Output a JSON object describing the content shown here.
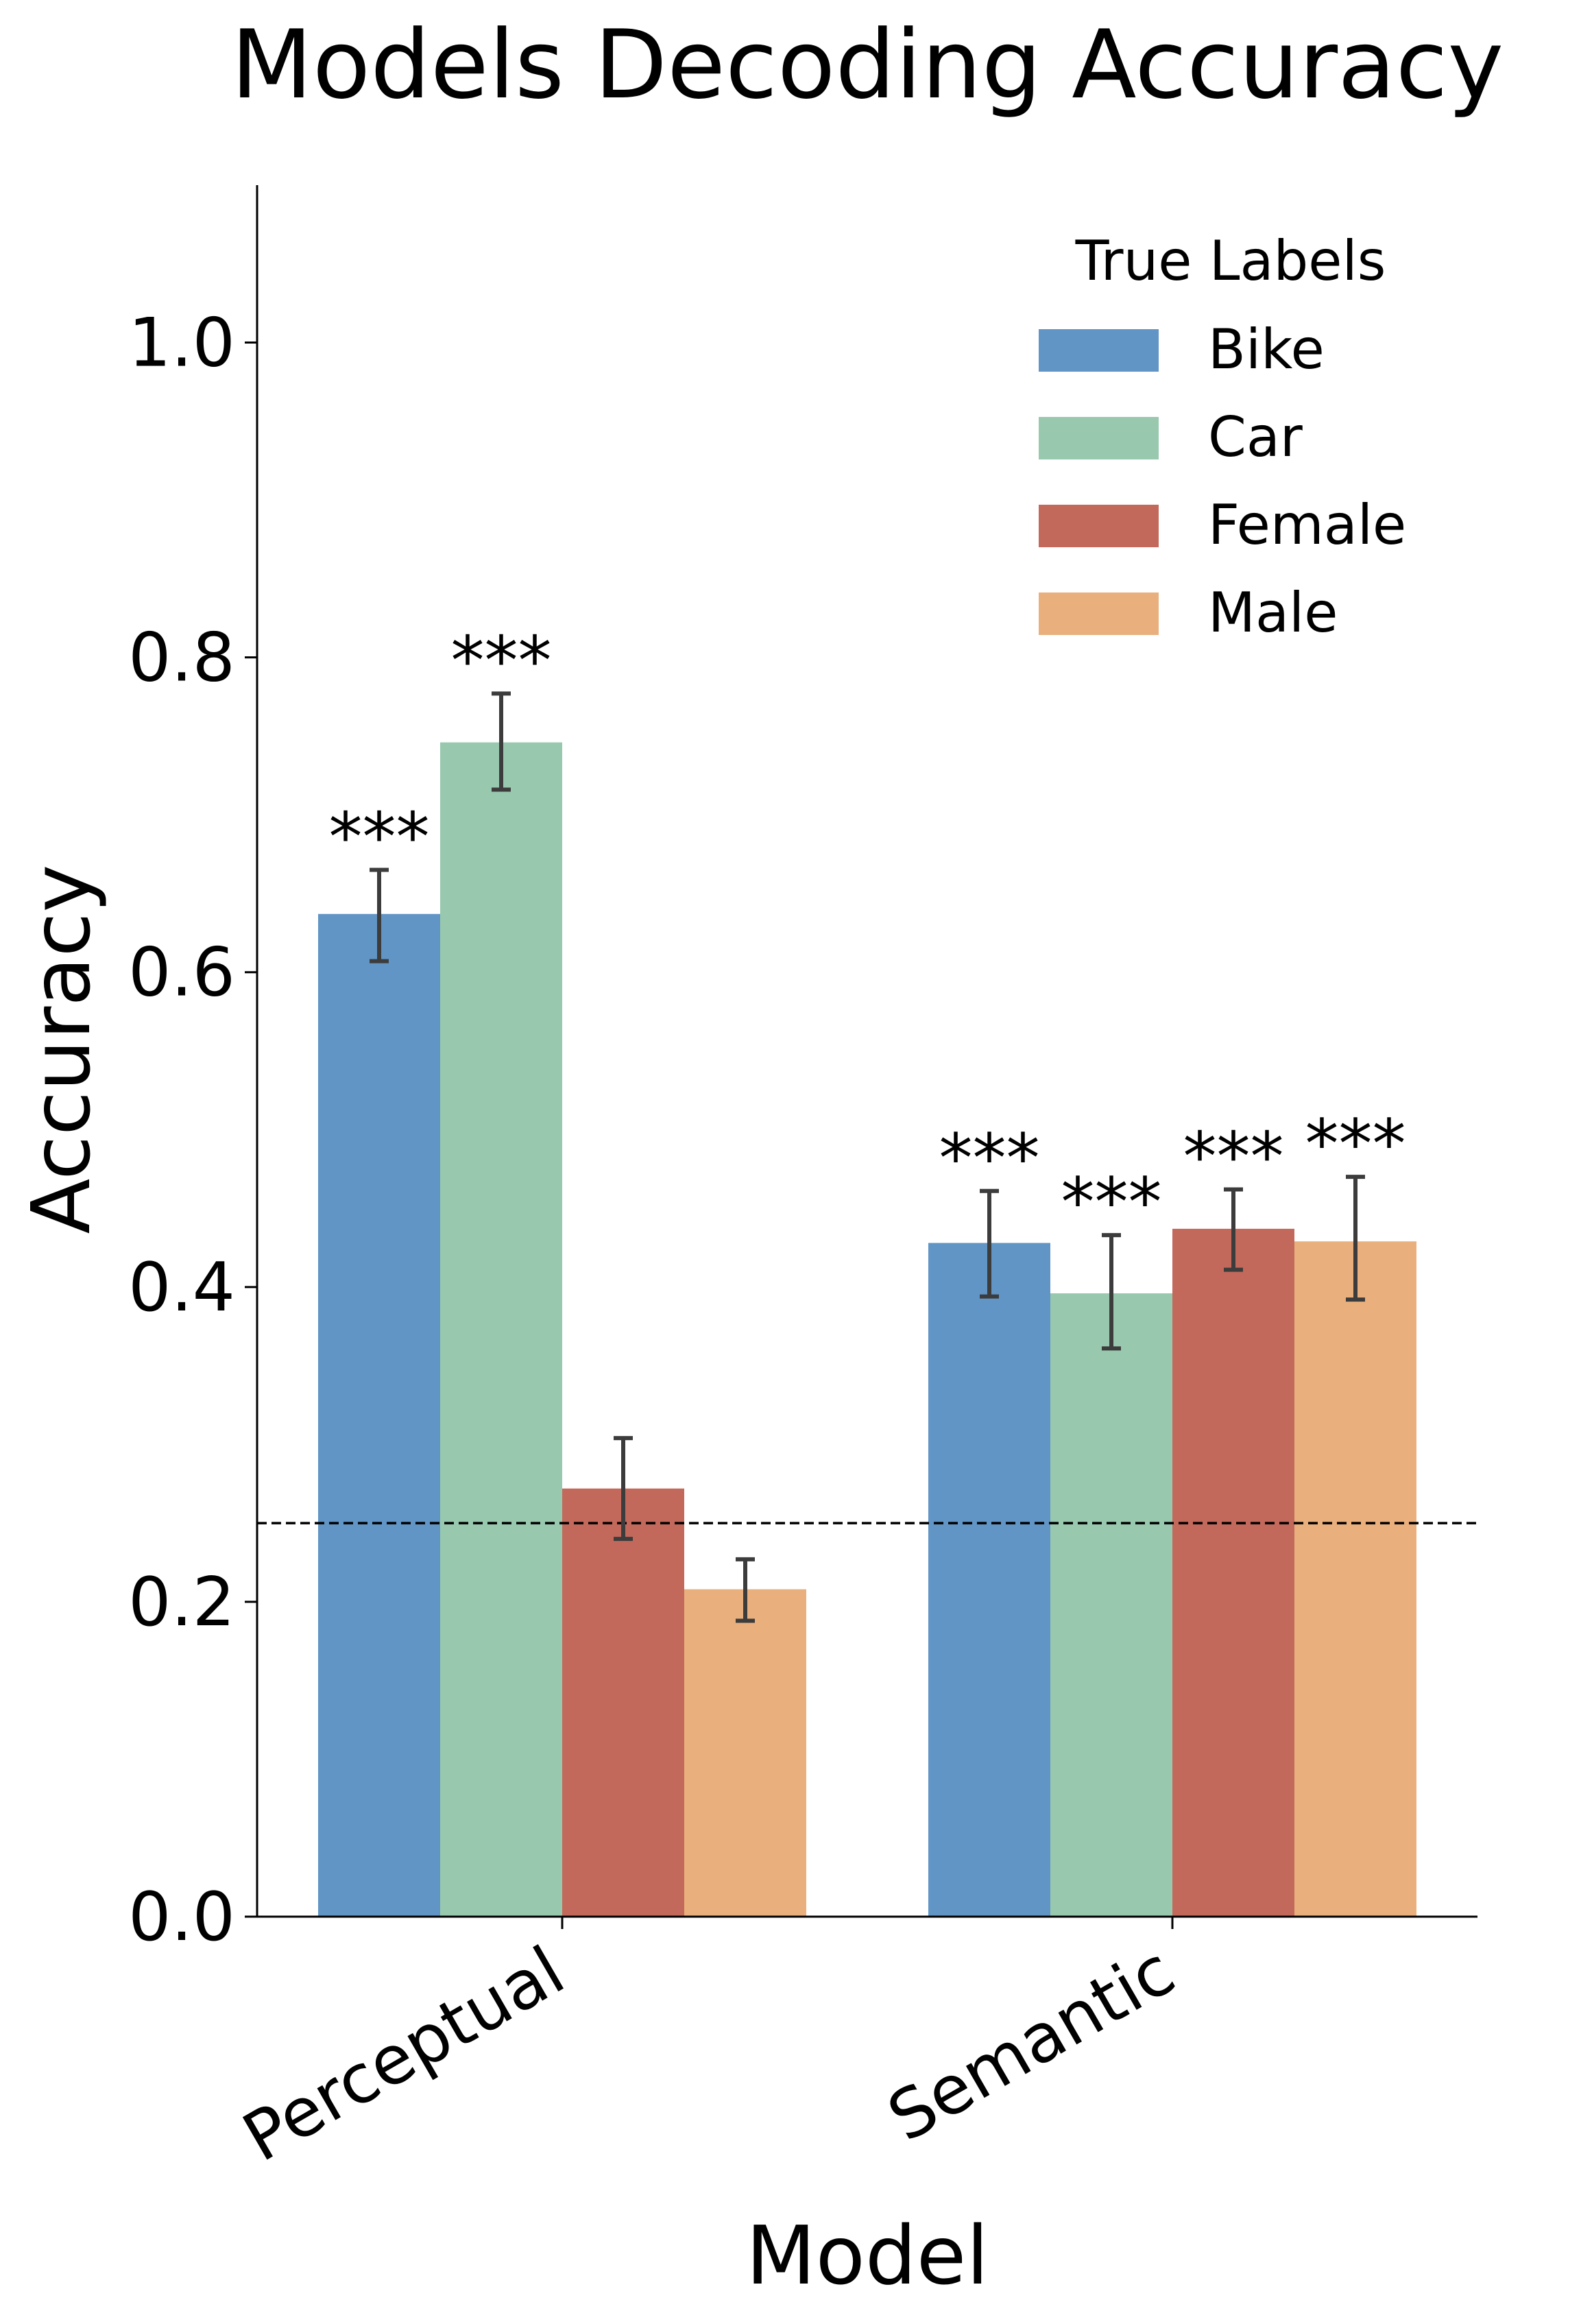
{
  "chart_data": {
    "type": "bar",
    "title": "Models Decoding Accuracy",
    "xlabel": "Model",
    "ylabel": "Accuracy",
    "categories": [
      "Perceptual",
      "Semantic"
    ],
    "ylim": [
      0,
      1.1
    ],
    "yticks": [
      0.0,
      0.2,
      0.4,
      0.6,
      0.8,
      1.0
    ],
    "ytick_labels": [
      "0.0",
      "0.2",
      "0.4",
      "0.6",
      "0.8",
      "1.0"
    ],
    "chance_level": 0.25,
    "grid": false,
    "legend": {
      "title": "True Labels",
      "position": "top-right"
    },
    "series": [
      {
        "name": "Bike",
        "color": "#6195c5",
        "values": [
          0.637,
          0.428
        ],
        "err_low": [
          0.607,
          0.394
        ],
        "err_high": [
          0.665,
          0.461
        ],
        "significance": [
          "***",
          "***"
        ]
      },
      {
        "name": "Car",
        "color": "#98c9ae",
        "values": [
          0.746,
          0.396
        ],
        "err_low": [
          0.716,
          0.361
        ],
        "err_high": [
          0.777,
          0.433
        ],
        "significance": [
          "***",
          "***"
        ]
      },
      {
        "name": "Female",
        "color": "#c3695b",
        "values": [
          0.272,
          0.437
        ],
        "err_low": [
          0.24,
          0.411
        ],
        "err_high": [
          0.304,
          0.462
        ],
        "significance": [
          "",
          "***"
        ]
      },
      {
        "name": "Male",
        "color": "#e9b07d",
        "values": [
          0.208,
          0.429
        ],
        "err_low": [
          0.188,
          0.392
        ],
        "err_high": [
          0.227,
          0.47
        ],
        "significance": [
          "",
          "***"
        ]
      }
    ]
  }
}
